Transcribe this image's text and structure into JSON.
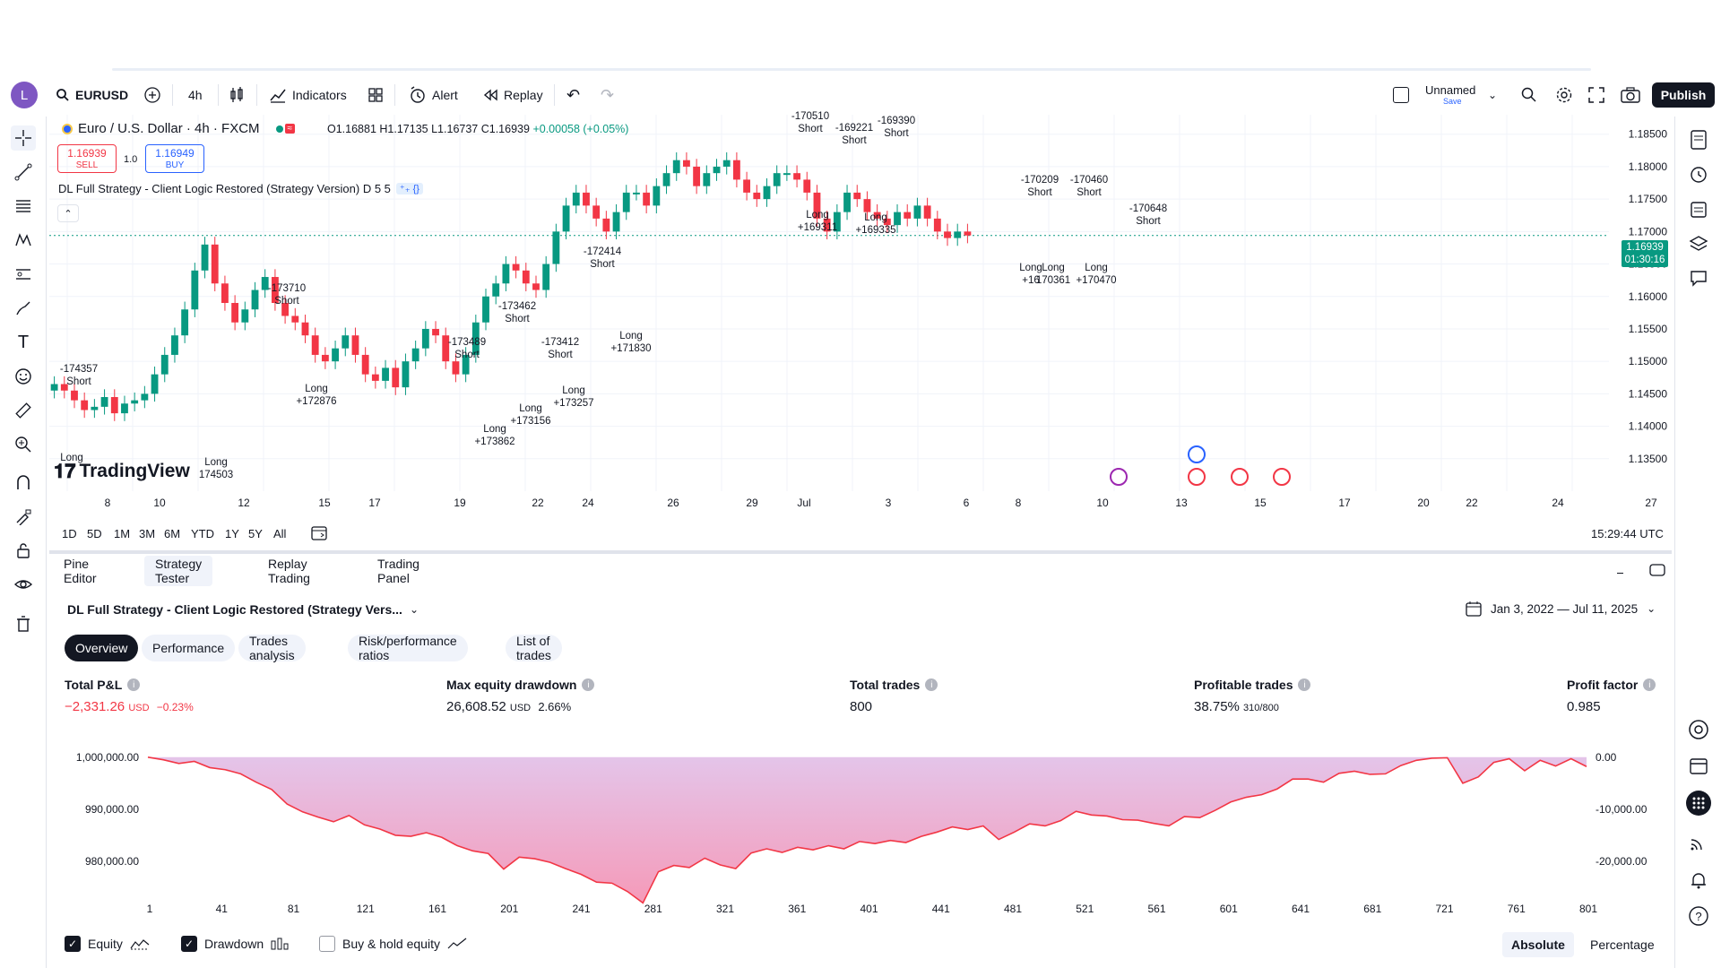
{
  "toolbar": {
    "avatar_letter": "L",
    "symbol": "EURUSD",
    "interval": "4h",
    "indicators_label": "Indicators",
    "alert_label": "Alert",
    "replay_label": "Replay",
    "layout_name": "Unnamed",
    "layout_sub": "Save",
    "publish_label": "Publish"
  },
  "legend": {
    "title": "Euro / U.S. Dollar · 4h · FXCM",
    "open": "O1.16881",
    "high": "H1.17135",
    "low": "L1.16737",
    "close": "C1.16939",
    "change": "+0.00058 (+0.05%)",
    "sell_price": "1.16939",
    "sell_label": "SELL",
    "buy_price": "1.16949",
    "buy_label": "BUY",
    "qty": "1.0",
    "strategy_legend": "DL Full Strategy - Client Logic Restored (Strategy Version) D 5 5"
  },
  "price_axis": [
    "1.18500",
    "1.18000",
    "1.17500",
    "1.17000",
    "1.16500",
    "1.16000",
    "1.15500",
    "1.15000",
    "1.14500",
    "1.14000",
    "1.13500"
  ],
  "price_tag": {
    "price": "1.16939",
    "countdown": "01:30:16"
  },
  "time_axis": [
    "8",
    "10",
    "12",
    "15",
    "17",
    "19",
    "22",
    "24",
    "26",
    "29",
    "Jul",
    "3",
    "6",
    "8",
    "10",
    "13",
    "15",
    "17",
    "20",
    "22",
    "24",
    "27"
  ],
  "annotations": [
    {
      "text": "-174357",
      "sub": "Short"
    },
    {
      "text": "Long",
      "sub": ""
    },
    {
      "text": "Long",
      "sub": "174503"
    },
    {
      "text": "-173710",
      "sub": "Short"
    },
    {
      "text": "Long",
      "sub": "+172876"
    },
    {
      "text": "-173489",
      "sub": "Short"
    },
    {
      "text": "Long",
      "sub": "+173862"
    },
    {
      "text": "-173462",
      "sub": "Short"
    },
    {
      "text": "Long",
      "sub": "+173156"
    },
    {
      "text": "-173412",
      "sub": "Short"
    },
    {
      "text": "Long",
      "sub": "+173257"
    },
    {
      "text": "-172414",
      "sub": "Short"
    },
    {
      "text": "Long",
      "sub": "+171830"
    },
    {
      "text": "-170510",
      "sub": "Short"
    },
    {
      "text": "Long",
      "sub": "+169311"
    },
    {
      "text": "-169221",
      "sub": "Short"
    },
    {
      "text": "-169390",
      "sub": "Short"
    },
    {
      "text": "Long",
      "sub": "+169335"
    },
    {
      "text": "-170209",
      "sub": "Short"
    },
    {
      "text": "Long",
      "sub": "+16"
    },
    {
      "text": "Long",
      "sub": "170361"
    },
    {
      "text": "-170460",
      "sub": "Short"
    },
    {
      "text": "Long",
      "sub": "+170470"
    },
    {
      "text": "-170648",
      "sub": "Short"
    }
  ],
  "watermark": "TradingView",
  "range_buttons": [
    "1D",
    "5D",
    "1M",
    "3M",
    "6M",
    "YTD",
    "1Y",
    "5Y",
    "All"
  ],
  "clock": "15:29:44 UTC",
  "panel_tabs": [
    "Pine Editor",
    "Strategy Tester",
    "Replay Trading",
    "Trading Panel"
  ],
  "strategy_name": "DL Full Strategy - Client Logic Restored (Strategy Vers...",
  "date_range": "Jan 3, 2022 — Jul 11, 2025",
  "sub_tabs": [
    "Overview",
    "Performance",
    "Trades analysis",
    "Risk/performance ratios",
    "List of trades"
  ],
  "metrics": {
    "pnl": {
      "label": "Total P&L",
      "value": "−2,331.26",
      "unit": "USD",
      "pct": "−0.23%"
    },
    "drawdown": {
      "label": "Max equity drawdown",
      "value": "26,608.52",
      "unit": "USD",
      "pct": "2.66%"
    },
    "trades": {
      "label": "Total trades",
      "value": "800"
    },
    "profitable": {
      "label": "Profitable trades",
      "value": "38.75%",
      "sub": "310/800"
    },
    "factor": {
      "label": "Profit factor",
      "value": "0.985"
    }
  },
  "equity_axis_left": [
    "1,000,000.00",
    "990,000.00",
    "980,000.00"
  ],
  "equity_axis_right": [
    "0.00",
    "-10,000.00",
    "-20,000.00"
  ],
  "equity_x": [
    "1",
    "41",
    "81",
    "121",
    "161",
    "201",
    "241",
    "281",
    "321",
    "361",
    "401",
    "441",
    "481",
    "521",
    "561",
    "601",
    "641",
    "681",
    "721",
    "761",
    "801"
  ],
  "bottom": {
    "equity": "Equity",
    "drawdown": "Drawdown",
    "buyhold": "Buy & hold equity",
    "absolute": "Absolute",
    "percentage": "Percentage"
  },
  "colors": {
    "up": "#089981",
    "down": "#f23645",
    "accent": "#2962ff",
    "dark": "#131722"
  }
}
